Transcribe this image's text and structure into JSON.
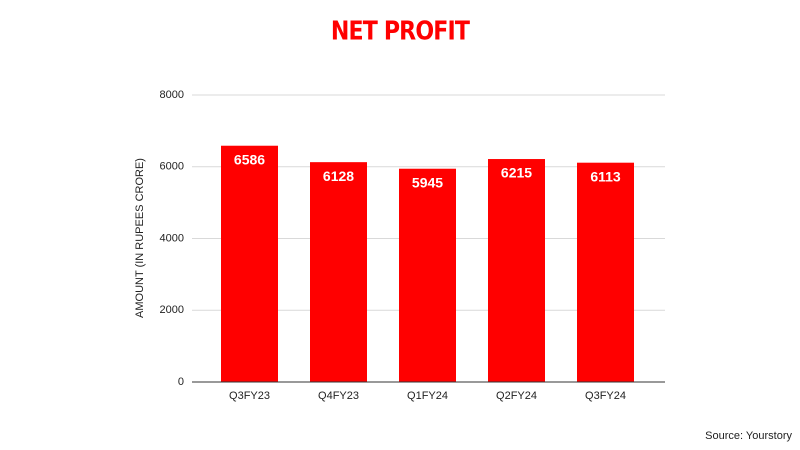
{
  "chart_data": {
    "type": "bar",
    "title": "NET PROFIT",
    "y_label": "AMOUNT (IN RUPEES CRORE)",
    "categories": [
      "Q3FY23",
      "Q4FY23",
      "Q1FY24",
      "Q2FY24",
      "Q3FY24"
    ],
    "values": [
      6586,
      6128,
      5945,
      6215,
      6113
    ],
    "color": "#ff0000",
    "ylim": [
      0,
      8000
    ],
    "yticks": [
      0,
      2000,
      4000,
      6000,
      8000
    ],
    "grid": true,
    "source": "Source: Yourstory"
  }
}
